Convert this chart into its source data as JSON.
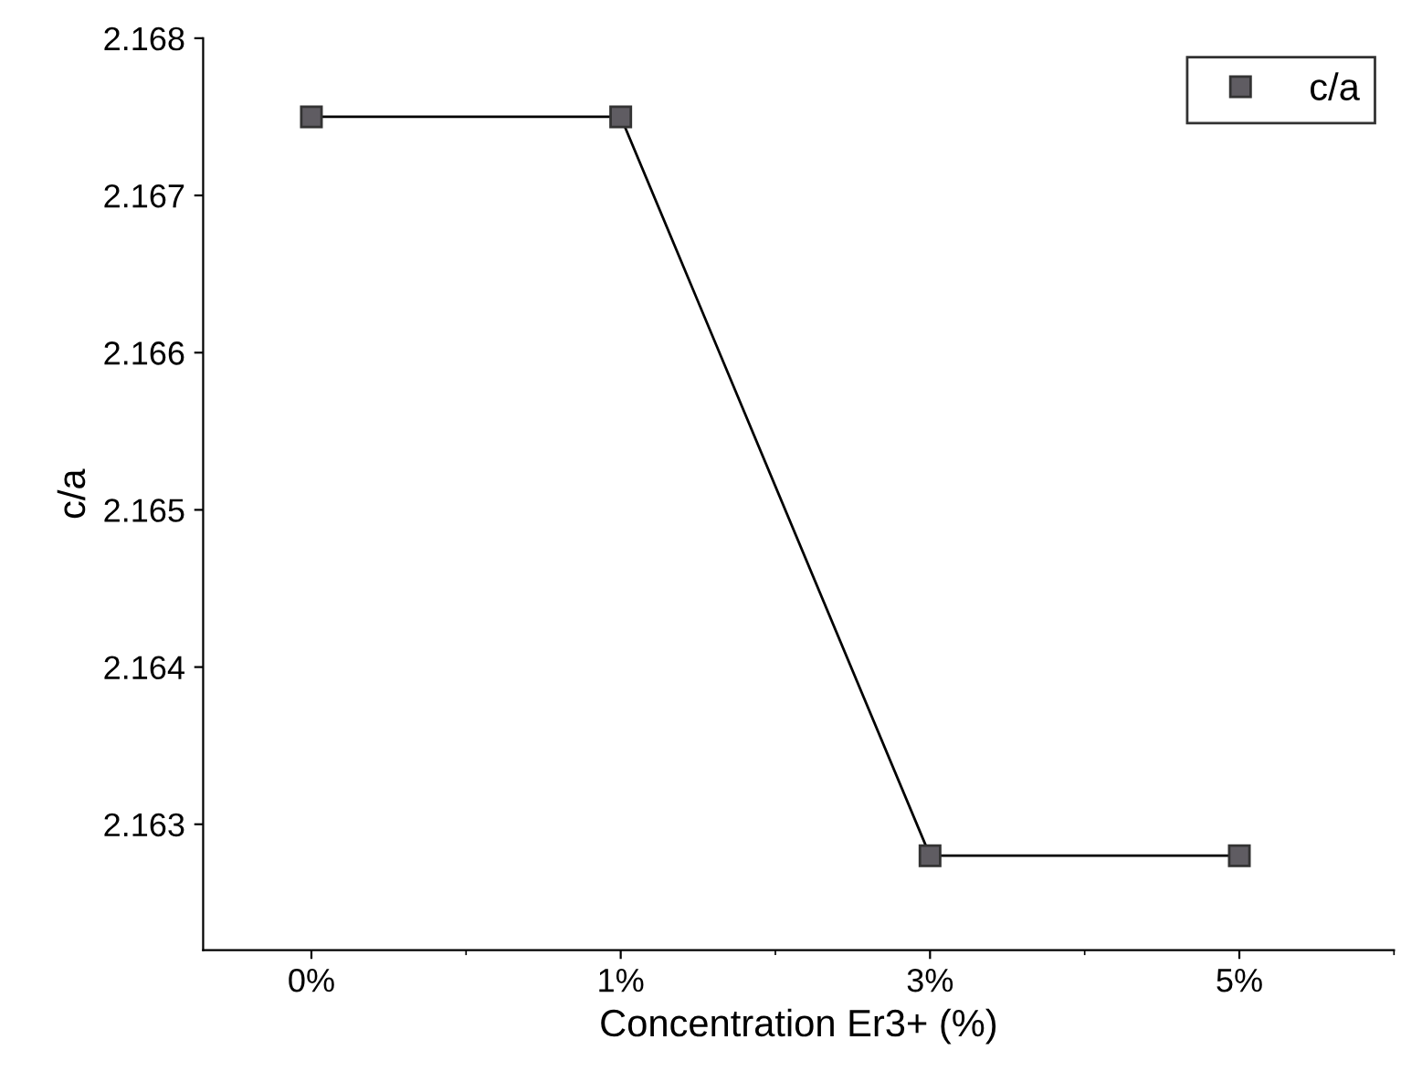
{
  "chart_data": {
    "type": "line",
    "xlabel": "Concentration Er3+ (%)",
    "ylabel": "c/a",
    "categories": [
      "0%",
      "1%",
      "3%",
      "5%"
    ],
    "series": [
      {
        "name": "c/a",
        "color": "#5f5c62",
        "values": [
          2.1675,
          2.1675,
          2.1628,
          2.1628
        ]
      }
    ],
    "ylim": [
      2.1622,
      2.168
    ],
    "yticks": [
      2.163,
      2.164,
      2.165,
      2.166,
      2.167,
      2.168
    ],
    "marker": "square",
    "line_style": "solid",
    "grid": false,
    "legend": "top right"
  }
}
